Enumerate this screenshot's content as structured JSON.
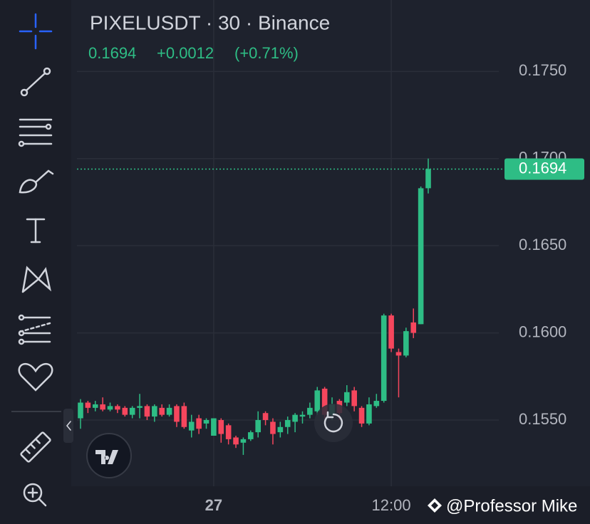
{
  "header": {
    "symbol": "PIXELUSDT · 30 · Binance",
    "price": "0.1694",
    "change": "+0.0012",
    "change_pct": "(+0.71%)"
  },
  "watermark": "@Professor Mike",
  "chart_data": {
    "type": "candlestick",
    "categories": [
      null,
      null,
      null,
      null,
      null,
      null,
      null,
      null,
      null,
      null,
      null,
      null,
      null,
      null,
      null,
      null,
      null,
      null,
      "27",
      null,
      null,
      null,
      null,
      null,
      null,
      null,
      null,
      null,
      null,
      null,
      null,
      null,
      null,
      null,
      null,
      null,
      null,
      null,
      null,
      null,
      null,
      null,
      "12:00",
      null,
      null,
      null,
      null,
      null
    ],
    "open": [
      0.1551,
      0.156,
      0.1557,
      0.1559,
      0.1556,
      0.1558,
      0.1557,
      0.1553,
      0.1557,
      0.1558,
      0.1552,
      0.1557,
      0.1553,
      0.1558,
      0.1558,
      0.1544,
      0.1551,
      0.1548,
      0.1541,
      0.155,
      0.1547,
      0.154,
      0.1537,
      0.1539,
      0.1543,
      0.1554,
      0.1549,
      0.1543,
      0.1546,
      0.1549,
      0.1552,
      0.1553,
      0.1555,
      0.1568,
      0.1553,
      0.1561,
      0.156,
      0.1567,
      0.1557,
      0.1548,
      0.1558,
      0.1561,
      0.161,
      0.1589,
      0.1587,
      0.1606,
      0.1605,
      0.1683
    ],
    "high": [
      0.1562,
      0.1561,
      0.1561,
      0.1563,
      0.156,
      0.1559,
      0.1558,
      0.1558,
      0.1565,
      0.1559,
      0.1559,
      0.1559,
      0.1559,
      0.1559,
      0.156,
      0.1553,
      0.1553,
      0.1551,
      0.1551,
      0.1551,
      0.1548,
      0.1541,
      0.154,
      0.1544,
      0.1555,
      0.1555,
      0.1551,
      0.1549,
      0.1552,
      0.1554,
      0.1555,
      0.156,
      0.1569,
      0.1569,
      0.1563,
      0.1562,
      0.157,
      0.1569,
      0.1558,
      0.1563,
      0.1565,
      0.1611,
      0.1611,
      0.1591,
      0.1603,
      0.1614,
      0.1684,
      0.17
    ],
    "low": [
      0.1545,
      0.1554,
      0.1555,
      0.1555,
      0.1555,
      0.1554,
      0.1552,
      0.1551,
      0.1551,
      0.155,
      0.1549,
      0.1552,
      0.1552,
      0.1546,
      0.1545,
      0.154,
      0.1542,
      0.1545,
      0.1541,
      0.1537,
      0.1536,
      0.1534,
      0.153,
      0.1538,
      0.154,
      0.1547,
      0.1536,
      0.154,
      0.1542,
      0.1543,
      0.1548,
      0.1551,
      0.1553,
      0.1551,
      0.155,
      0.155,
      0.1558,
      0.1555,
      0.1546,
      0.1547,
      0.1557,
      0.156,
      0.1589,
      0.1563,
      0.1586,
      0.1597,
      0.1605,
      0.168
    ],
    "close": [
      0.156,
      0.1557,
      0.1559,
      0.1556,
      0.1558,
      0.1556,
      0.1553,
      0.1557,
      0.1558,
      0.1552,
      0.1558,
      0.1553,
      0.1557,
      0.1549,
      0.1546,
      0.1549,
      0.1545,
      0.155,
      0.1551,
      0.1542,
      0.1539,
      0.1536,
      0.1539,
      0.1543,
      0.155,
      0.155,
      0.1542,
      0.1546,
      0.155,
      0.1553,
      0.1553,
      0.1557,
      0.1567,
      0.1553,
      0.1559,
      0.1554,
      0.1566,
      0.1558,
      0.1548,
      0.1559,
      0.1561,
      0.161,
      0.1591,
      0.1587,
      0.1601,
      0.16,
      0.1683,
      0.1694
    ],
    "up_color": "#2ebd85",
    "down_color": "#f6465d",
    "last_price": 0.1694,
    "ylim": [
      0.1512,
      0.1791
    ],
    "yticks": [
      {
        "value": 0.155,
        "label": "0.1550"
      },
      {
        "value": 0.16,
        "label": "0.1600"
      },
      {
        "value": 0.165,
        "label": "0.1650"
      },
      {
        "value": 0.17,
        "label": "0.1700"
      },
      {
        "value": 0.175,
        "label": "0.1750"
      }
    ],
    "grid": true
  }
}
